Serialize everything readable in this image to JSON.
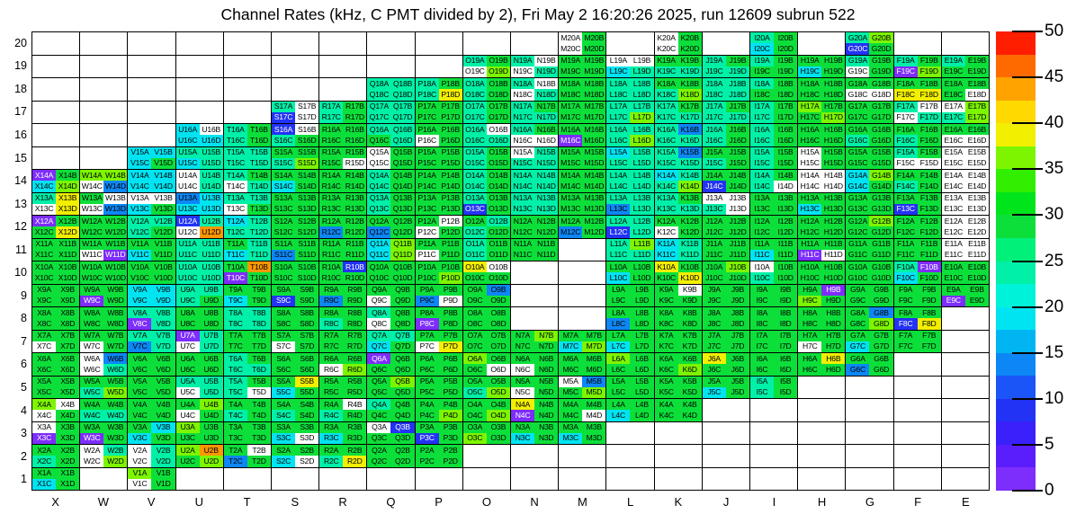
{
  "title": "Channel Rates (kHz, C PMT divided by 2), Fri May  2 16:20:26 2025, run 12609 subrun 522",
  "units": "kHz",
  "axes": {
    "y_tick_labels": [
      "20",
      "19",
      "18",
      "17",
      "16",
      "15",
      "14",
      "13",
      "12",
      "11",
      "10",
      "9",
      "8",
      "7",
      "6",
      "5",
      "4",
      "3",
      "2",
      "1"
    ],
    "x_tick_labels": [
      "X",
      "W",
      "V",
      "U",
      "T",
      "S",
      "R",
      "Q",
      "P",
      "O",
      "N",
      "M",
      "L",
      "K",
      "J",
      "I",
      "H",
      "G",
      "F",
      "E"
    ]
  },
  "colorbar": {
    "min": 0,
    "max": 50,
    "tick_values": [
      0,
      5,
      10,
      15,
      20,
      25,
      30,
      35,
      40,
      45,
      50
    ],
    "segment_colors_bottom_to_top": [
      "#7d2dfc",
      "#5a1efd",
      "#3a20fb",
      "#2233f5",
      "#1c55f7",
      "#0d87f5",
      "#00b5f2",
      "#00e4f2",
      "#00f2d8",
      "#00f0a8",
      "#00f07a",
      "#0ddf3a",
      "#00e41b",
      "#32ee00",
      "#7df500",
      "#f2ef00",
      "#ffd900",
      "#ffa300",
      "#ff6a00",
      "#ff1e00"
    ]
  },
  "palette": {
    ".": {
      "hex": "#ffffff",
      "approx_kHz": null,
      "text": "none",
      "meaning": "no channel / empty block"
    },
    "W": {
      "hex": "#ffffff",
      "approx_kHz": 0,
      "text": "#000000",
      "meaning": "channel present, rate ~0"
    },
    "P": {
      "hex": "#7d2dfc",
      "approx_kHz": 1,
      "text": "#ffffff",
      "meaning": "violet"
    },
    "B": {
      "hex": "#2233f5",
      "approx_kHz": 6,
      "text": "#ffffff",
      "meaning": "blue"
    },
    "b": {
      "hex": "#0d87f5",
      "approx_kHz": 11,
      "text": "#000000",
      "meaning": "light blue"
    },
    "c": {
      "hex": "#00e4f2",
      "approx_kHz": 16,
      "text": "#000000",
      "meaning": "cyan"
    },
    "t": {
      "hex": "#00f0a8",
      "approx_kHz": 21,
      "text": "#000000",
      "meaning": "spring green"
    },
    "G": {
      "hex": "#0ddf3a",
      "approx_kHz": 26,
      "text": "#000000",
      "meaning": "green"
    },
    "g": {
      "hex": "#7df500",
      "approx_kHz": 31,
      "text": "#000000",
      "meaning": "yellow-green"
    },
    "Y": {
      "hex": "#f2ef00",
      "approx_kHz": 36,
      "text": "#000000",
      "meaning": "yellow"
    },
    "O": {
      "hex": "#ff9700",
      "approx_kHz": 41,
      "text": "#000000",
      "meaning": "orange"
    },
    "R": {
      "hex": "#ff1e00",
      "approx_kHz": 47,
      "text": "#ffffff",
      "meaning": "red"
    }
  },
  "chart_data": {
    "type": "heatmap",
    "title": "Channel Rates (kHz, C PMT divided by 2), Fri May  2 16:20:26 2025, run 12609 subrun 522",
    "columns": [
      "X",
      "W",
      "V",
      "U",
      "T",
      "S",
      "R",
      "Q",
      "P",
      "O",
      "N",
      "M",
      "L",
      "K",
      "J",
      "I",
      "H",
      "G",
      "F",
      "E"
    ],
    "sublabels": [
      "A",
      "B",
      "C",
      "D"
    ],
    "cell_label_format": "{column}{row}{sublabel}",
    "cell_layout": "each column-row block is a 2x2: A top-left, B top-right, C bottom-left, D bottom-right",
    "zlim": [
      0,
      50
    ],
    "rows": [
      {
        "row": "20",
        "ab": "......................WG..WG..tG..tg....",
        "cd": "......................WG..WG..cG..BG...."
      },
      {
        "row": "19",
        "ab": "..................tGtWGGWWGGtGtGGGtGtGtG",
        "cd": "..................WgWtGGctttttGGcGWGPgGG"
      },
      {
        "row": "18",
        "ab": "..............tttGtGtWGGttGGtttGGGGGGGGG",
        "cd": "..............tttYtGWtGGtttgttGGGGWWYYGW"
      },
      {
        "row": "17",
        "ab": "..........tWtGttGGtGtGGGtttGtGtGgGGGtWWg",
        "cd": "..........BWtGttGGtGttGGtgtttttGGgGGWttg"
      },
      {
        "row": "16",
        "ab": "......cWtGBWGGttGGtWtGGGtttbtGtGGGGGGGGG",
        "cd": "......cctGtGGGGtWGttWWPGtgtttGtGGGtGtGWW"
      },
      {
        "row": "15",
        "ab": "....ccttttGGGGWGGGtGWtGGcttbGGtGWGGGtGWW",
        "cd": "....cGcttttgGWWGGGtGttGGtttttGtGWGGGWWWW"
      },
      {
        "row": "14",
        "ab": "PGggccWttGGGGGtGGGtGttGGttctGGtGWWcgGGWW",
        "cd": "cgWbccWtWtcGGGtGGGtGttGGtttgBGtWWWcGtGWW"
      },
      {
        "row": "13",
        "ab": "tYGWWWbcttGGGGtGGGtGttGGtttGWWGGGGGGGGWW",
        "cd": "WYWbcGccWGGGGGtGGGBGttGGbttttWGGcGGGBGWW"
      },
      {
        "row": "12",
        "ab": "PGGGttBtctGGGGGGGWGtGGGGttGGGGGGGGGgGGWW",
        "cd": "GYGGtGWOttGGbGbGWGtGGGbGBtWGGGGGGGGGGGWW"
      },
      {
        "row": "11",
        "ab": "GGGGGGttGtGGGGcgGGtGGG..tgctGGGGGGGGGGWW",
        "cd": "GGWPcGttctbGGGcgWGtGGG..ttctGGcGPWGGGGWW"
      },
      {
        "row": "10",
        "ab": "GGGGGGttGOGGGBGGGGYW....GGYGGgWGGGGGtPGG",
        "cd": "GGGGGGttPGGGGGGGGgGG....cGGYGGtGGGGGcGGG"
      },
      {
        "row": "9",
        "ab": "GGGGccttGGGGGGGGGGGb....GGGWGGGGGPGGGGGG",
        "cd": "GGPGcctGcGBGbGWGbWGG....GGGGGGGGgGGGGGPG"
      },
      {
        "row": "8",
        "ab": "GGGGttGGttGGGGtGGGGG....GGGGGGGGGGGbGG..",
        "cd": "GGGGPtGGttGGtGWGPGGG....bGGGGGGGGGGgBY.."
      },
      {
        "row": "7",
        "ab": "GGGGttPtGGGGGGttGGGGGgGGGGGGGGGGGGGGGG..",
        "cd": "WGWGbtWtGGWGGGcGWYGGGGcgcGGGGGGGWGcGGG.."
      },
      {
        "row": "6",
        "ab": "GGWbGGGGtGGGGGPGGGgGGGGGgGGGYGGGGYGG....",
        "cd": "GGWtGGGGttGGWgGGGGGWWGGGGGGgGGGGGGbG...."
      },
      {
        "row": "5",
        "ab": "GGGGGGtttGGYGGGgGGGGGGWbGGGGGGtG........",
        "cd": "GGtgGGWttWcGGGGGGGtgWGGgGGGGcGtG........"
      },
      {
        "row": "4",
        "ab": "gWGGGGGgGGGGGWtGGGGGYGGGGGGG............",
        "cd": "WGttGGWGtGtGtGGGGgGgPGGWcGGG............"
      },
      {
        "row": "3",
        "ab": "WGGGGcgGGGGGGGWBGGGGGGGG................",
        "cd": "PGPGcGGGGGcWcGGGBGgGcGcG................"
      },
      {
        "row": "2",
        "ab": "GGWtWtgOGWGGGGGGGG......................",
        "cd": "tGWgWtGgbGcWtYGGGG......................"
      },
      {
        "row": "1",
        "ab": "GG..gG..................................",
        "cd": "cG..WG.................................."
      }
    ]
  }
}
